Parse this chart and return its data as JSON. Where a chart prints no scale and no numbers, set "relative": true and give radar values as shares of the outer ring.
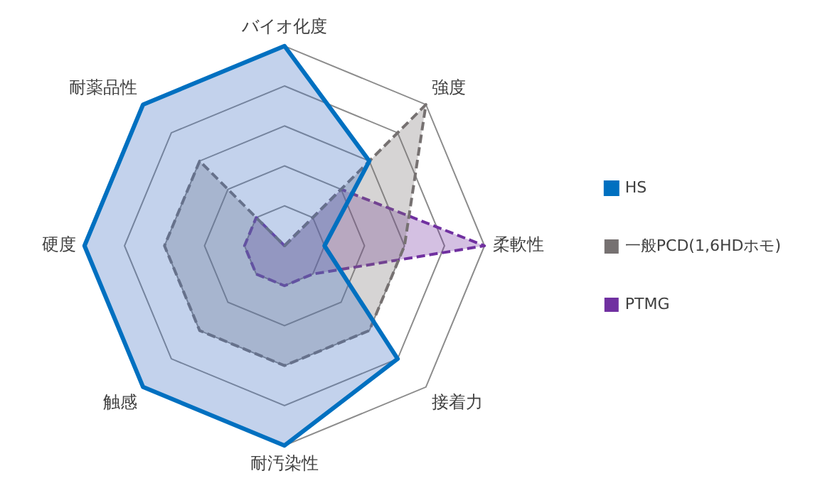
{
  "chart_data": {
    "type": "radar",
    "relative": true,
    "categories": [
      "バイオ化度",
      "強度",
      "柔軟性",
      "接着力",
      "耐汚染性",
      "触感",
      "硬度",
      "耐薬品性"
    ],
    "legend": "right",
    "grid": true,
    "marker": "none",
    "series": [
      {
        "name": "HS",
        "color": "#0070c0",
        "line_style": "solid",
        "values": [
          1.0,
          0.6,
          0.2,
          0.8,
          1.0,
          1.0,
          1.0,
          1.0
        ]
      },
      {
        "name": "一般PCD(1,6HDホモ)",
        "color": "#767171",
        "line_style": "dashed",
        "values": [
          0,
          1.0,
          0.6,
          0.6,
          0.6,
          0.6,
          0.6,
          0.6
        ]
      },
      {
        "name": "PTMG",
        "color": "#7030a0",
        "line_style": "dashed",
        "values": [
          0,
          0.4,
          1.0,
          0.2,
          0.2,
          0.2,
          0.2,
          0.2
        ]
      }
    ]
  }
}
